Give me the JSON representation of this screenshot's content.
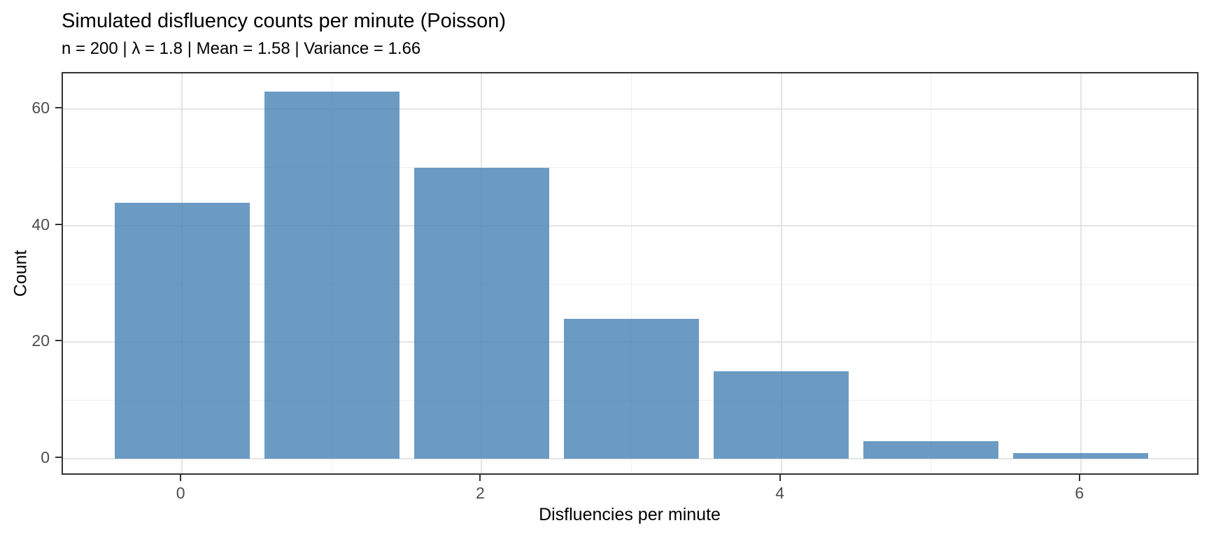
{
  "chart_data": {
    "type": "bar",
    "title": "Simulated disfluency counts per minute (Poisson)",
    "subtitle": "n = 200 | λ = 1.8 | Mean = 1.58 | Variance = 1.66",
    "xlabel": "Disfluencies per minute",
    "ylabel": "Count",
    "categories": [
      0,
      1,
      2,
      3,
      4,
      5,
      6
    ],
    "values": [
      44,
      63,
      50,
      24,
      15,
      3,
      1
    ],
    "n": 200,
    "lambda": 1.8,
    "mean": 1.58,
    "variance": 1.66,
    "bar_width": 0.9,
    "x_major_ticks": [
      0,
      2,
      4,
      6
    ],
    "x_minor_gridlines": [
      1,
      3,
      5
    ],
    "y_major_ticks": [
      0,
      20,
      40,
      60
    ],
    "y_minor_gridlines": [
      10,
      30,
      50
    ],
    "xlim": [
      -0.795,
      6.795
    ],
    "ylim": [
      -3.0,
      66.15
    ],
    "grid": true,
    "legend": "none",
    "colors": {
      "bar_fill": "#4682B4",
      "bar_alpha": 0.8,
      "panel_border": "#333333",
      "grid_major": "#e4e4e4",
      "grid_minor": "#eeeeee",
      "tick_mark": "#333333",
      "tick_text": "#4d4d4d",
      "title_text": "#000000",
      "background": "#ffffff"
    }
  }
}
